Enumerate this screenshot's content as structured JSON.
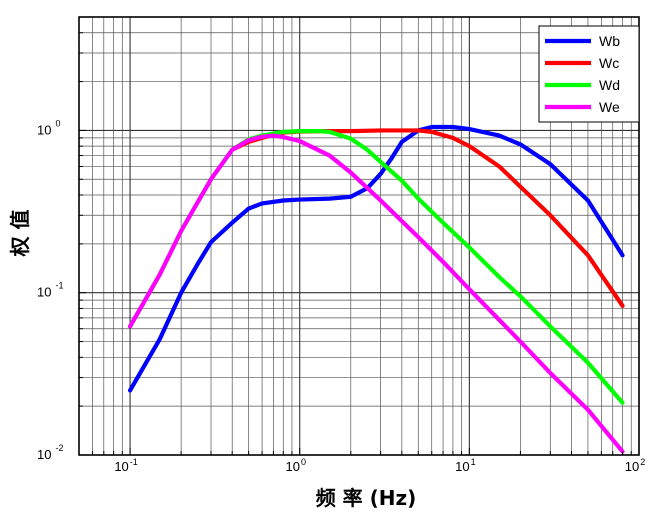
{
  "chart_data": {
    "type": "line",
    "xlabel": "频 率 (Hz)",
    "ylabel": "权 值",
    "x_scale": "log",
    "y_scale": "log",
    "xlim": [
      0.05,
      100
    ],
    "ylim": [
      0.01,
      5
    ],
    "grid": true,
    "legend_position": "top-right",
    "x_ticks": [
      {
        "base": "10",
        "exp": "-1"
      },
      {
        "base": "10",
        "exp": "0"
      },
      {
        "base": "10",
        "exp": "1"
      },
      {
        "base": "10",
        "exp": "2"
      }
    ],
    "y_ticks": [
      {
        "base": "10",
        "exp": "0"
      },
      {
        "base": "10",
        "exp": "-1"
      },
      {
        "base": "10",
        "exp": "-2"
      }
    ],
    "series": [
      {
        "name": "Wb",
        "color": "#0000ff",
        "points": [
          [
            0.1,
            0.025
          ],
          [
            0.15,
            0.052
          ],
          [
            0.2,
            0.1
          ],
          [
            0.25,
            0.15
          ],
          [
            0.3,
            0.205
          ],
          [
            0.4,
            0.27
          ],
          [
            0.5,
            0.33
          ],
          [
            0.6,
            0.355
          ],
          [
            0.8,
            0.37
          ],
          [
            1.0,
            0.375
          ],
          [
            1.5,
            0.38
          ],
          [
            2.0,
            0.39
          ],
          [
            2.5,
            0.44
          ],
          [
            3.0,
            0.54
          ],
          [
            3.5,
            0.68
          ],
          [
            4.0,
            0.85
          ],
          [
            5.0,
            1.0
          ],
          [
            6.0,
            1.05
          ],
          [
            8.0,
            1.05
          ],
          [
            10.0,
            1.02
          ],
          [
            15.0,
            0.93
          ],
          [
            20.0,
            0.82
          ],
          [
            30.0,
            0.62
          ],
          [
            50.0,
            0.37
          ],
          [
            80.0,
            0.17
          ]
        ]
      },
      {
        "name": "Wc",
        "color": "#ff0000",
        "points": [
          [
            0.4,
            0.76
          ],
          [
            0.5,
            0.85
          ],
          [
            0.6,
            0.9
          ],
          [
            0.8,
            0.97
          ],
          [
            1.0,
            0.985
          ],
          [
            1.5,
            0.99
          ],
          [
            2.0,
            0.99
          ],
          [
            3.0,
            1.0
          ],
          [
            5.0,
            1.0
          ],
          [
            6.0,
            0.98
          ],
          [
            8.0,
            0.9
          ],
          [
            10.0,
            0.8
          ],
          [
            15.0,
            0.6
          ],
          [
            20.0,
            0.45
          ],
          [
            30.0,
            0.3
          ],
          [
            50.0,
            0.17
          ],
          [
            80.0,
            0.083
          ]
        ]
      },
      {
        "name": "Wd",
        "color": "#00ff00",
        "points": [
          [
            0.1,
            0.062
          ],
          [
            0.15,
            0.13
          ],
          [
            0.2,
            0.24
          ],
          [
            0.25,
            0.36
          ],
          [
            0.3,
            0.5
          ],
          [
            0.4,
            0.76
          ],
          [
            0.5,
            0.88
          ],
          [
            0.6,
            0.93
          ],
          [
            0.8,
            0.98
          ],
          [
            1.0,
            0.99
          ],
          [
            1.3,
            0.99
          ],
          [
            1.5,
            0.98
          ],
          [
            2.0,
            0.89
          ],
          [
            2.5,
            0.76
          ],
          [
            3.0,
            0.64
          ],
          [
            4.0,
            0.49
          ],
          [
            5.0,
            0.38
          ],
          [
            7.0,
            0.27
          ],
          [
            10.0,
            0.19
          ],
          [
            15.0,
            0.125
          ],
          [
            20.0,
            0.095
          ],
          [
            30.0,
            0.062
          ],
          [
            50.0,
            0.037
          ],
          [
            80.0,
            0.021
          ]
        ]
      },
      {
        "name": "We",
        "color": "#ff00ff",
        "points": [
          [
            0.1,
            0.062
          ],
          [
            0.15,
            0.13
          ],
          [
            0.2,
            0.24
          ],
          [
            0.25,
            0.36
          ],
          [
            0.3,
            0.5
          ],
          [
            0.4,
            0.76
          ],
          [
            0.5,
            0.87
          ],
          [
            0.6,
            0.915
          ],
          [
            0.7,
            0.93
          ],
          [
            0.8,
            0.91
          ],
          [
            1.0,
            0.86
          ],
          [
            1.5,
            0.7
          ],
          [
            2.0,
            0.55
          ],
          [
            3.0,
            0.37
          ],
          [
            5.0,
            0.22
          ],
          [
            7.0,
            0.155
          ],
          [
            10.0,
            0.105
          ],
          [
            15.0,
            0.068
          ],
          [
            20.0,
            0.05
          ],
          [
            30.0,
            0.032
          ],
          [
            50.0,
            0.019
          ],
          [
            80.0,
            0.0105
          ]
        ]
      }
    ]
  }
}
